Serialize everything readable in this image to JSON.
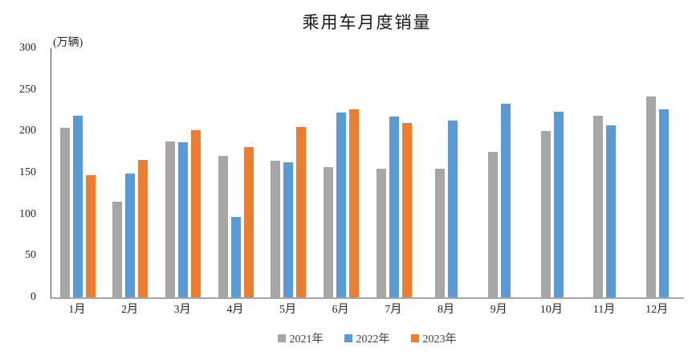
{
  "title": "乘用车月度销量",
  "chart_data": {
    "type": "bar",
    "title": "乘用车月度销量",
    "ylabel": "(万辆)",
    "xlabel": "",
    "ylim": [
      0,
      300
    ],
    "yticks": [
      0,
      50,
      100,
      150,
      200,
      250,
      300
    ],
    "grid": false,
    "legend_position": "bottom",
    "categories": [
      "1月",
      "2月",
      "3月",
      "4月",
      "5月",
      "6月",
      "7月",
      "8月",
      "9月",
      "10月",
      "11月",
      "12月"
    ],
    "series": [
      {
        "name": "2021年",
        "color": "#a6a6a6",
        "values": [
          204.5,
          115.6,
          187.4,
          170.4,
          164.6,
          156.9,
          155.1,
          155.2,
          175.1,
          200.7,
          219.2,
          242.2
        ]
      },
      {
        "name": "2022年",
        "color": "#5b9bd5",
        "values": [
          218.6,
          148.7,
          186.4,
          96.5,
          162.3,
          222.2,
          217.4,
          212.5,
          233.2,
          223.1,
          207.5,
          226.3
        ]
      },
      {
        "name": "2023年",
        "color": "#ed7d31",
        "values": [
          146.9,
          165.3,
          201.7,
          181.1,
          205.1,
          226.8,
          210.0,
          null,
          null,
          null,
          null,
          null
        ]
      }
    ]
  }
}
